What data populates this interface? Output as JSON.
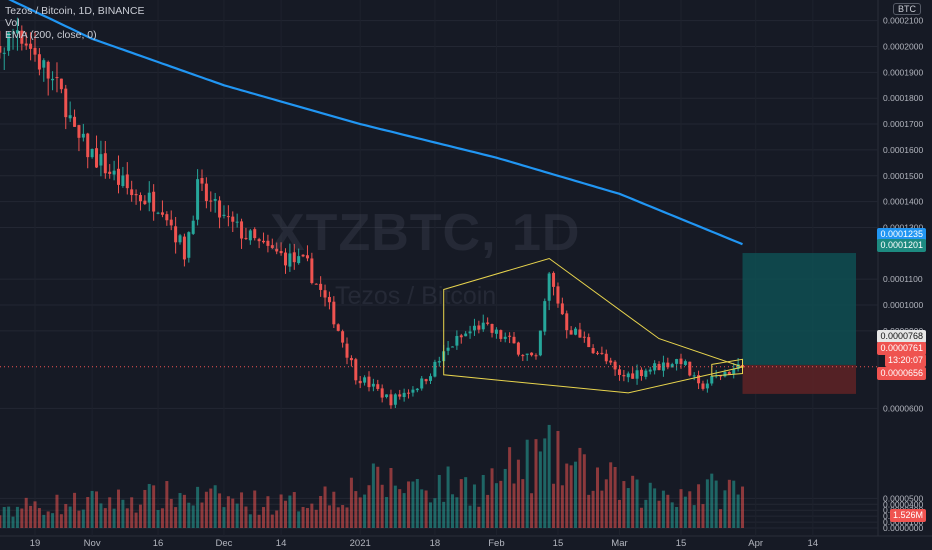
{
  "legend": {
    "title": "Tezos / Bitcoin, 1D, BINANCE",
    "vol": "Vol",
    "ema": "EMA (200, close, 0)"
  },
  "watermark": {
    "symbol": "XTZBTC, 1D",
    "description": "Tezos / Bitcoin"
  },
  "currency_label": "BTC",
  "colors": {
    "background": "#161a25",
    "up": "#26a69a",
    "down": "#ef5350",
    "ema": "#2196f3",
    "pattern": "#e8d44d",
    "target_zone": "#0e4f52",
    "stop_zone": "#5b2226"
  },
  "price_axis": {
    "labels": [
      "0.0002100",
      "0.0002000",
      "0.0001900",
      "0.0001800",
      "0.0001700",
      "0.0001600",
      "0.0001500",
      "0.0001400",
      "0.0001300",
      "0.0001100",
      "0.0001000",
      "0.0000900",
      "0.0000600",
      "0.0000500",
      "0.0000400",
      "0.0000300",
      "0.0000200",
      "0.0000100",
      "0.0000000"
    ]
  },
  "price_badges": {
    "ema_value": "0.0001235",
    "target": "0.0001201",
    "entry": "0.0000768",
    "last_price": "0.0000761",
    "countdown": "13:20:07",
    "stop": "0.0000656",
    "volume": "1.526M"
  },
  "time_axis": [
    "19",
    "Nov",
    "16",
    "Dec",
    "14",
    "2021",
    "18",
    "Feb",
    "15",
    "Mar",
    "15",
    "Apr",
    "14"
  ],
  "chart_data": {
    "type": "candlestick",
    "symbol": "XTZBTC",
    "title": "Tezos / Bitcoin, 1D, BINANCE",
    "ylim": [
      5.55e-05,
      0.000218
    ],
    "volume_ylim": [
      0,
      560
    ],
    "anchors": [
      {
        "date": "2020-10-05",
        "close": 0.000194
      },
      {
        "date": "2020-10-12",
        "close": 0.0002
      },
      {
        "date": "2020-10-15",
        "close": 0.000208
      },
      {
        "date": "2020-10-20",
        "close": 0.000194
      },
      {
        "date": "2020-10-26",
        "close": 0.000178
      },
      {
        "date": "2020-10-28",
        "close": 0.000165
      },
      {
        "date": "2020-11-03",
        "close": 0.000155
      },
      {
        "date": "2020-11-10",
        "close": 0.000143
      },
      {
        "date": "2020-11-17",
        "close": 0.000139
      },
      {
        "date": "2020-11-22",
        "close": 0.00012
      },
      {
        "date": "2020-11-25",
        "close": 0.000145
      },
      {
        "date": "2020-12-01",
        "close": 0.000133
      },
      {
        "date": "2020-12-10",
        "close": 0.000122
      },
      {
        "date": "2020-12-20",
        "close": 0.000115
      },
      {
        "date": "2020-12-26",
        "close": 9.5e-05
      },
      {
        "date": "2020-12-31",
        "close": 7.3e-05
      },
      {
        "date": "2021-01-08",
        "close": 6.3e-05
      },
      {
        "date": "2021-01-15",
        "close": 7e-05
      },
      {
        "date": "2021-01-22",
        "close": 8.5e-05
      },
      {
        "date": "2021-01-28",
        "close": 9.2e-05
      },
      {
        "date": "2021-02-03",
        "close": 8.7e-05
      },
      {
        "date": "2021-02-10",
        "close": 7.8e-05
      },
      {
        "date": "2021-02-13",
        "close": 0.000111
      },
      {
        "date": "2021-02-17",
        "close": 9.2e-05
      },
      {
        "date": "2021-02-24",
        "close": 8.2e-05
      },
      {
        "date": "2021-03-01",
        "close": 7.2e-05
      },
      {
        "date": "2021-03-09",
        "close": 7.6e-05
      },
      {
        "date": "2021-03-15",
        "close": 7.9e-05
      },
      {
        "date": "2021-03-19",
        "close": 6.8e-05
      },
      {
        "date": "2021-03-25",
        "close": 7.4e-05
      },
      {
        "date": "2021-03-29",
        "close": 7.61e-05
      }
    ],
    "ema200": [
      {
        "date": "2020-10-11",
        "value": 0.00022
      },
      {
        "date": "2020-11-01",
        "value": 0.000203
      },
      {
        "date": "2020-12-01",
        "value": 0.000185
      },
      {
        "date": "2021-01-01",
        "value": 0.00017
      },
      {
        "date": "2021-02-01",
        "value": 0.000157
      },
      {
        "date": "2021-03-01",
        "value": 0.000143
      },
      {
        "date": "2021-03-29",
        "value": 0.0001235
      }
    ],
    "volume_levels": [
      {
        "date": "2020-10-10",
        "value": 90
      },
      {
        "date": "2020-11-20",
        "value": 150
      },
      {
        "date": "2020-12-15",
        "value": 110
      },
      {
        "date": "2021-01-05",
        "value": 210
      },
      {
        "date": "2021-01-28",
        "value": 190
      },
      {
        "date": "2021-02-12",
        "value": 330
      },
      {
        "date": "2021-03-05",
        "value": 160
      },
      {
        "date": "2021-03-29",
        "value": 180
      }
    ],
    "long_position": {
      "entry": 7.68e-05,
      "target": 0.0001201,
      "stop": 6.56e-05,
      "start_date": "2021-03-29",
      "end_date": "2021-04-27"
    },
    "patterns": {
      "broadening_wedge": [
        {
          "date": "2021-01-20",
          "price": 0.000106
        },
        {
          "date": "2021-02-13",
          "price": 0.000118
        },
        {
          "date": "2021-03-10",
          "price": 8.7e-05
        },
        {
          "date": "2021-03-29",
          "price": 7.6e-05
        },
        {
          "date": "2021-03-03",
          "price": 6.6e-05
        },
        {
          "date": "2021-01-20",
          "price": 7.3e-05
        }
      ],
      "flag_box": [
        {
          "date": "2021-03-22",
          "price": 7.7e-05
        },
        {
          "date": "2021-03-29",
          "price": 7.9e-05
        },
        {
          "date": "2021-03-29",
          "price": 7.35e-05
        },
        {
          "date": "2021-03-22",
          "price": 7.25e-05
        }
      ]
    },
    "x_ticks": [
      "19",
      "Nov",
      "16",
      "Dec",
      "14",
      "2021",
      "18",
      "Feb",
      "15",
      "Mar",
      "15",
      "Apr",
      "14"
    ],
    "grid": true
  }
}
